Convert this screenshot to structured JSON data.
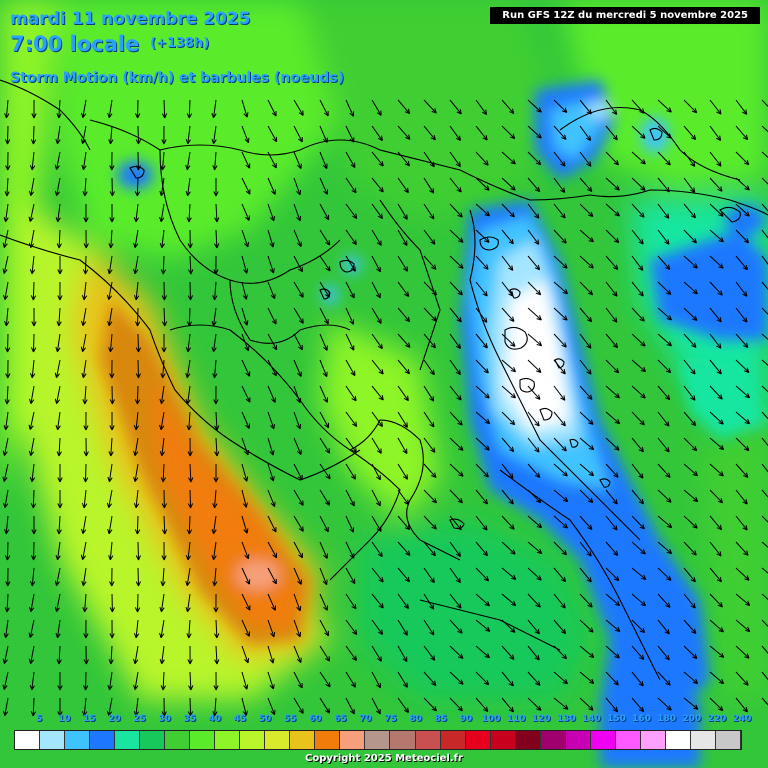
{
  "header": {
    "date_line": "mardi 11 novembre 2025",
    "time_line": "7:00 locale",
    "lead_time": "(+138h)",
    "field_line": "Storm Motion (km/h) et barbules (noeuds)"
  },
  "run_info": "Run GFS 12Z du mercredi 5 novembre 2025",
  "copyright": "Copyright 2025 Meteociel.fr",
  "scale": {
    "labels": [
      "5",
      "10",
      "15",
      "20",
      "25",
      "30",
      "35",
      "40",
      "45",
      "50",
      "55",
      "60",
      "65",
      "70",
      "75",
      "80",
      "85",
      "90",
      "100",
      "110",
      "120",
      "130",
      "140",
      "150",
      "160",
      "180",
      "200",
      "220",
      "240"
    ],
    "colors": [
      "#ffffff",
      "#a5e6ff",
      "#3fc3ff",
      "#1e78ff",
      "#18e6a0",
      "#17c95a",
      "#3fcf33",
      "#5aec2a",
      "#8ef528",
      "#b8f52a",
      "#d8e82a",
      "#e8c31c",
      "#f07d0a",
      "#f5a07a",
      "#b4968c",
      "#b4786e",
      "#c85050",
      "#c82828",
      "#e6001e",
      "#c8001e",
      "#82001e",
      "#a0006e",
      "#c800b4",
      "#f000f0",
      "#ff5aff",
      "#ffa0ff",
      "#ffffff",
      "#e6e6e6",
      "#c8c8c8"
    ]
  },
  "map": {
    "region": "Balkans / Grèce / Turquie",
    "arrow_color": "#000000",
    "coast_color": "#000000"
  }
}
